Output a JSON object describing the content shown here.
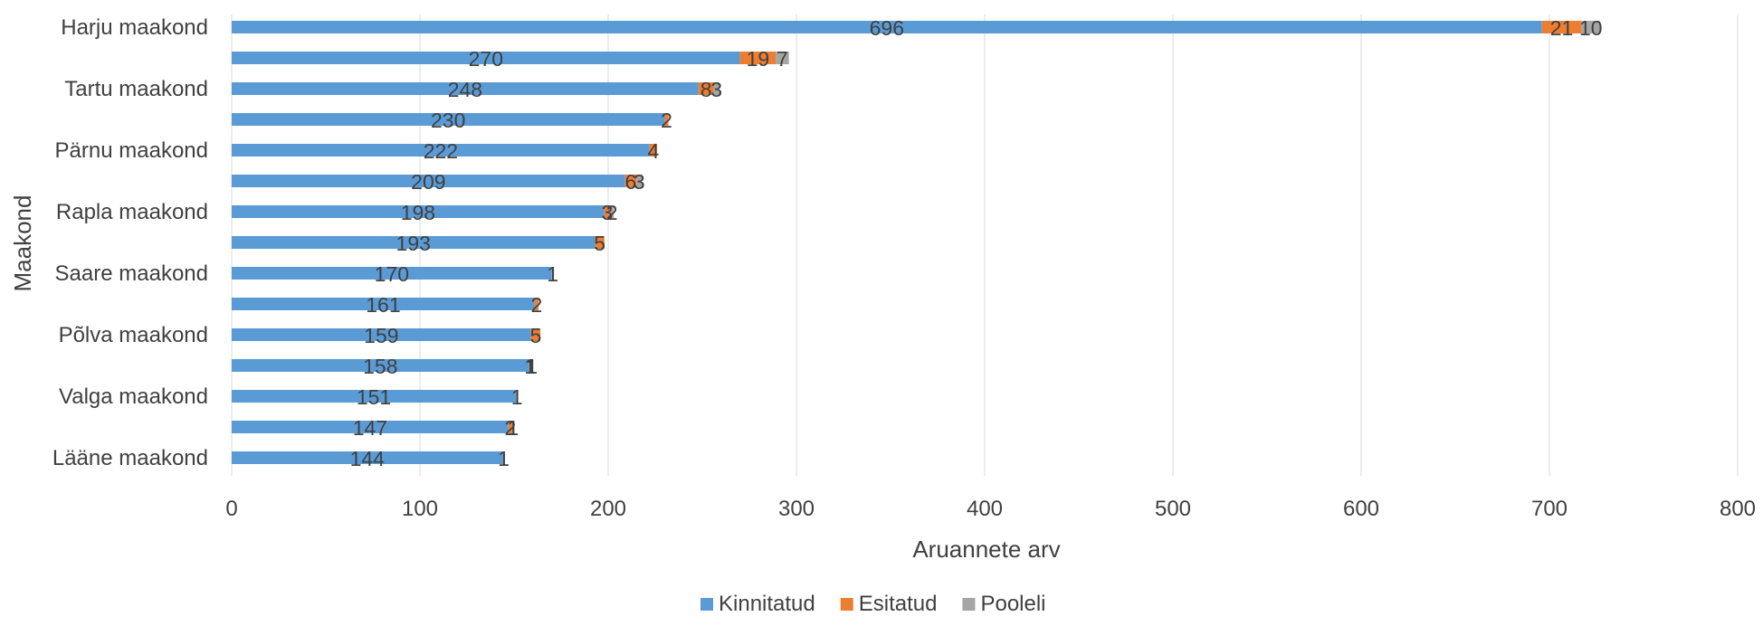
{
  "chart_data": {
    "type": "bar",
    "orientation": "horizontal",
    "stacked": true,
    "title": "",
    "xlabel": "Aruannete arv",
    "ylabel": "Maakond",
    "xlim": [
      0,
      800
    ],
    "x_ticks": [
      0,
      100,
      200,
      300,
      400,
      500,
      600,
      700,
      800
    ],
    "grid": "vertical",
    "legend_position": "bottom",
    "category_labels": [
      "Harju maakond",
      "",
      "Tartu maakond",
      "",
      "Pärnu maakond",
      "",
      "Rapla maakond",
      "",
      "Saare maakond",
      "",
      "Põlva maakond",
      "",
      "Valga maakond",
      "",
      "Lääne maakond"
    ],
    "series": [
      {
        "name": "Kinnitatud",
        "color": "#5B9BD5",
        "values": [
          696,
          270,
          248,
          230,
          222,
          209,
          198,
          193,
          170,
          161,
          159,
          158,
          151,
          147,
          144
        ]
      },
      {
        "name": "Esitatud",
        "color": "#ED7D31",
        "values": [
          21,
          19,
          8,
          2,
          4,
          6,
          3,
          5,
          null,
          2,
          5,
          1,
          null,
          2,
          null
        ]
      },
      {
        "name": "Pooleli",
        "color": "#A5A5A5",
        "values": [
          10,
          7,
          3,
          null,
          null,
          3,
          2,
          null,
          1,
          null,
          null,
          1,
          1,
          1,
          1
        ]
      }
    ]
  }
}
